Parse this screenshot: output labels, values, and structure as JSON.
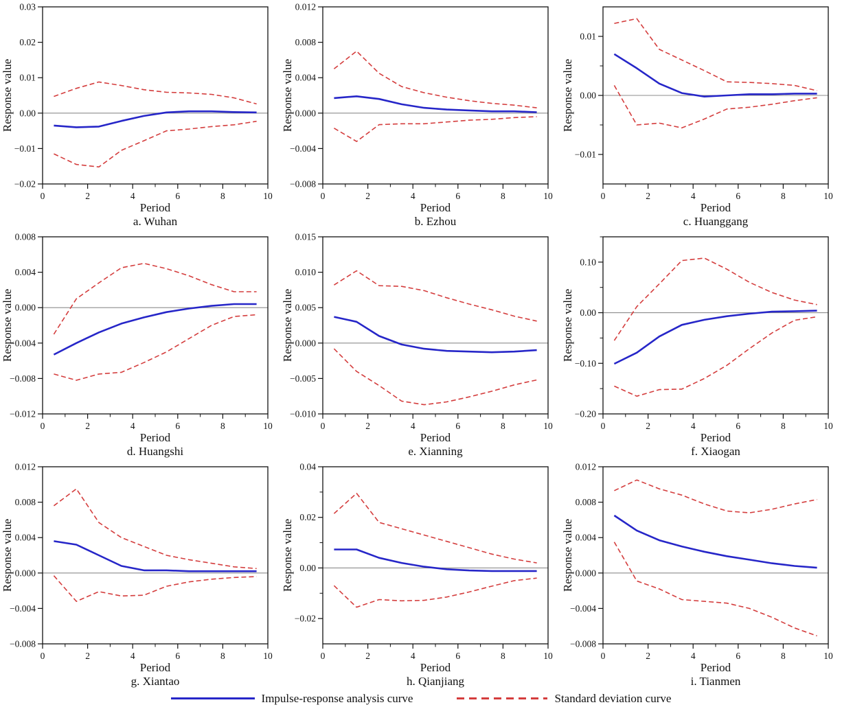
{
  "colors": {
    "impulse": "#2626c8",
    "stddev": "#d43d3d",
    "zero_line": "#8c8c8c",
    "frame": "#111111"
  },
  "legend": {
    "items": [
      {
        "label": "Impulse-response analysis curve",
        "style": "solid",
        "color": "#2626c8"
      },
      {
        "label": "Standard deviation curve",
        "style": "dashed",
        "color": "#d43d3d"
      }
    ]
  },
  "chart_data": [
    {
      "type": "line",
      "title": "a. Wuhan",
      "xlabel": "Period",
      "ylabel": "Response value",
      "xlim": [
        0,
        10
      ],
      "xticks": [
        0,
        2,
        4,
        6,
        8,
        10
      ],
      "xminor": [
        1,
        3,
        5,
        7,
        9
      ],
      "ylim": [
        -0.02,
        0.03
      ],
      "yticks": [
        0.03,
        0.02,
        0.01,
        0,
        -0.01,
        -0.02
      ],
      "ytick_labels": [
        "0.03",
        "0.02",
        "0.01",
        "0.00",
        "−0.01",
        "−0.02"
      ],
      "yminor": [],
      "x": [
        0.5,
        1.5,
        2.5,
        3.5,
        4.5,
        5.5,
        6.5,
        7.5,
        8.5,
        9.5
      ],
      "series": [
        {
          "name": "impulse-response",
          "style": "solid",
          "color": "#2626c8",
          "values": [
            -0.0035,
            -0.004,
            -0.0038,
            -0.0022,
            -0.0008,
            0.0002,
            0.0005,
            0.0005,
            0.0003,
            0.0002
          ]
        },
        {
          "name": "stddev-upper",
          "style": "dashed",
          "color": "#d43d3d",
          "values": [
            0.0047,
            0.007,
            0.0088,
            0.0078,
            0.0066,
            0.0059,
            0.0057,
            0.0053,
            0.0043,
            0.0026
          ]
        },
        {
          "name": "stddev-lower",
          "style": "dashed",
          "color": "#d43d3d",
          "values": [
            -0.0115,
            -0.0145,
            -0.0152,
            -0.0105,
            -0.0078,
            -0.005,
            -0.0045,
            -0.0038,
            -0.0033,
            -0.0023
          ]
        }
      ]
    },
    {
      "type": "line",
      "title": "b. Ezhou",
      "xlabel": "Period",
      "ylabel": "Response value",
      "xlim": [
        0,
        10
      ],
      "xticks": [
        0,
        2,
        4,
        6,
        8,
        10
      ],
      "xminor": [
        1,
        3,
        5,
        7,
        9
      ],
      "ylim": [
        -0.008,
        0.012
      ],
      "yticks": [
        0.012,
        0.008,
        0.004,
        0,
        -0.004,
        -0.008
      ],
      "ytick_labels": [
        "0.012",
        "0.008",
        "0.004",
        "0.000",
        "−0.004",
        "−0.008"
      ],
      "yminor": [],
      "x": [
        0.5,
        1.5,
        2.5,
        3.5,
        4.5,
        5.5,
        6.5,
        7.5,
        8.5,
        9.5
      ],
      "series": [
        {
          "name": "impulse-response",
          "style": "solid",
          "color": "#2626c8",
          "values": [
            0.0017,
            0.0019,
            0.0016,
            0.001,
            0.0006,
            0.0004,
            0.0003,
            0.0002,
            0.0002,
            0.0001
          ]
        },
        {
          "name": "stddev-upper",
          "style": "dashed",
          "color": "#d43d3d",
          "values": [
            0.005,
            0.007,
            0.0045,
            0.003,
            0.0023,
            0.0018,
            0.0014,
            0.0011,
            0.0009,
            0.0006
          ]
        },
        {
          "name": "stddev-lower",
          "style": "dashed",
          "color": "#d43d3d",
          "values": [
            -0.0017,
            -0.0032,
            -0.0013,
            -0.0012,
            -0.0012,
            -0.001,
            -0.0008,
            -0.0007,
            -0.0005,
            -0.0004
          ]
        }
      ]
    },
    {
      "type": "line",
      "title": "c. Huanggang",
      "xlabel": "Period",
      "ylabel": "Response value",
      "xlim": [
        0,
        10
      ],
      "xticks": [
        0,
        2,
        4,
        6,
        8,
        10
      ],
      "xminor": [
        1,
        3,
        5,
        7,
        9
      ],
      "ylim": [
        -0.015,
        0.015
      ],
      "yticks": [
        0.01,
        0,
        -0.01
      ],
      "ytick_labels": [
        "0.01",
        "0.00",
        "−0.01"
      ],
      "yminor": [
        0.005,
        -0.005
      ],
      "x": [
        0.5,
        1.5,
        2.5,
        3.5,
        4.5,
        5.5,
        6.5,
        7.5,
        8.5,
        9.5
      ],
      "series": [
        {
          "name": "impulse-response",
          "style": "solid",
          "color": "#2626c8",
          "values": [
            0.007,
            0.0046,
            0.002,
            0.0004,
            -0.0002,
            0.0,
            0.0002,
            0.0002,
            0.0003,
            0.0003
          ]
        },
        {
          "name": "stddev-upper",
          "style": "dashed",
          "color": "#d43d3d",
          "values": [
            0.0122,
            0.013,
            0.0078,
            0.006,
            0.0042,
            0.0023,
            0.0022,
            0.002,
            0.0017,
            0.0008
          ]
        },
        {
          "name": "stddev-lower",
          "style": "dashed",
          "color": "#d43d3d",
          "values": [
            0.0017,
            -0.005,
            -0.0047,
            -0.0055,
            -0.004,
            -0.0023,
            -0.002,
            -0.0015,
            -0.0009,
            -0.0004
          ]
        }
      ]
    },
    {
      "type": "line",
      "title": "d. Huangshi",
      "xlabel": "Period",
      "ylabel": "Response value",
      "xlim": [
        0,
        10
      ],
      "xticks": [
        0,
        2,
        4,
        6,
        8,
        10
      ],
      "xminor": [
        1,
        3,
        5,
        7,
        9
      ],
      "ylim": [
        -0.012,
        0.008
      ],
      "yticks": [
        0.008,
        0.004,
        0,
        -0.004,
        -0.008,
        -0.012
      ],
      "ytick_labels": [
        "0.008",
        "0.004",
        "0.000",
        "−0.004",
        "−0.008",
        "−0.012"
      ],
      "yminor": [],
      "x": [
        0.5,
        1.5,
        2.5,
        3.5,
        4.5,
        5.5,
        6.5,
        7.5,
        8.5,
        9.5
      ],
      "series": [
        {
          "name": "impulse-response",
          "style": "solid",
          "color": "#2626c8",
          "values": [
            -0.0053,
            -0.004,
            -0.0028,
            -0.0018,
            -0.0011,
            -0.0005,
            -0.0001,
            0.0002,
            0.0004,
            0.0004
          ]
        },
        {
          "name": "stddev-upper",
          "style": "dashed",
          "color": "#d43d3d",
          "values": [
            -0.003,
            0.001,
            0.0028,
            0.0045,
            0.005,
            0.0044,
            0.0036,
            0.0026,
            0.0018,
            0.0018
          ]
        },
        {
          "name": "stddev-lower",
          "style": "dashed",
          "color": "#d43d3d",
          "values": [
            -0.0075,
            -0.0082,
            -0.0075,
            -0.0073,
            -0.0062,
            -0.005,
            -0.0035,
            -0.002,
            -0.001,
            -0.0008
          ]
        }
      ]
    },
    {
      "type": "line",
      "title": "e. Xianning",
      "xlabel": "Period",
      "ylabel": "Response value",
      "xlim": [
        0,
        10
      ],
      "xticks": [
        0,
        2,
        4,
        6,
        8,
        10
      ],
      "xminor": [
        1,
        3,
        5,
        7,
        9
      ],
      "ylim": [
        -0.01,
        0.015
      ],
      "yticks": [
        0.015,
        0.01,
        0.005,
        0,
        -0.005,
        -0.01
      ],
      "ytick_labels": [
        "0.015",
        "0.010",
        "0.005",
        "0.000",
        "−0.005",
        "−0.010"
      ],
      "yminor": [],
      "x": [
        0.5,
        1.5,
        2.5,
        3.5,
        4.5,
        5.5,
        6.5,
        7.5,
        8.5,
        9.5
      ],
      "series": [
        {
          "name": "impulse-response",
          "style": "solid",
          "color": "#2626c8",
          "values": [
            0.0037,
            0.003,
            0.001,
            -0.0002,
            -0.0008,
            -0.0011,
            -0.0012,
            -0.0013,
            -0.0012,
            -0.001
          ]
        },
        {
          "name": "stddev-upper",
          "style": "dashed",
          "color": "#d43d3d",
          "values": [
            0.0082,
            0.0102,
            0.0081,
            0.008,
            0.0074,
            0.0064,
            0.0055,
            0.0047,
            0.0038,
            0.0031
          ]
        },
        {
          "name": "stddev-lower",
          "style": "dashed",
          "color": "#d43d3d",
          "values": [
            -0.0008,
            -0.004,
            -0.006,
            -0.0082,
            -0.0087,
            -0.0083,
            -0.0076,
            -0.0068,
            -0.0059,
            -0.0052
          ]
        }
      ]
    },
    {
      "type": "line",
      "title": "f. Xiaogan",
      "xlabel": "Period",
      "ylabel": "Response value",
      "xlim": [
        0,
        10
      ],
      "xticks": [
        0,
        2,
        4,
        6,
        8,
        10
      ],
      "xminor": [
        1,
        3,
        5,
        7,
        9
      ],
      "ylim": [
        -0.2,
        0.15
      ],
      "yticks": [
        0.1,
        0,
        -0.1,
        -0.2
      ],
      "ytick_labels": [
        "0.10",
        "0.00",
        "−0.10",
        "−0.20"
      ],
      "yminor": [
        0.15,
        0.05,
        -0.05,
        -0.15
      ],
      "x": [
        0.5,
        1.5,
        2.5,
        3.5,
        4.5,
        5.5,
        6.5,
        7.5,
        8.5,
        9.5
      ],
      "series": [
        {
          "name": "impulse-response",
          "style": "solid",
          "color": "#2626c8",
          "values": [
            -0.101,
            -0.079,
            -0.047,
            -0.024,
            -0.014,
            -0.007,
            -0.002,
            0.002,
            0.003,
            0.004
          ]
        },
        {
          "name": "stddev-upper",
          "style": "dashed",
          "color": "#d43d3d",
          "values": [
            -0.055,
            0.012,
            0.057,
            0.103,
            0.108,
            0.086,
            0.06,
            0.04,
            0.025,
            0.016
          ]
        },
        {
          "name": "stddev-lower",
          "style": "dashed",
          "color": "#d43d3d",
          "values": [
            -0.145,
            -0.165,
            -0.152,
            -0.151,
            -0.13,
            -0.104,
            -0.071,
            -0.04,
            -0.015,
            -0.008
          ]
        }
      ]
    },
    {
      "type": "line",
      "title": "g. Xiantao",
      "xlabel": "Period",
      "ylabel": "Response value",
      "xlim": [
        0,
        10
      ],
      "xticks": [
        0,
        2,
        4,
        6,
        8,
        10
      ],
      "xminor": [
        1,
        3,
        5,
        7,
        9
      ],
      "ylim": [
        -0.008,
        0.012
      ],
      "yticks": [
        0.012,
        0.008,
        0.004,
        0,
        -0.004,
        -0.008
      ],
      "ytick_labels": [
        "0.012",
        "0.008",
        "0.004",
        "0.000",
        "−0.004",
        "−0.008"
      ],
      "yminor": [],
      "x": [
        0.5,
        1.5,
        2.5,
        3.5,
        4.5,
        5.5,
        6.5,
        7.5,
        8.5,
        9.5
      ],
      "series": [
        {
          "name": "impulse-response",
          "style": "solid",
          "color": "#2626c8",
          "values": [
            0.0036,
            0.0032,
            0.002,
            0.0008,
            0.0003,
            0.0003,
            0.0002,
            0.0002,
            0.0002,
            0.0002
          ]
        },
        {
          "name": "stddev-upper",
          "style": "dashed",
          "color": "#d43d3d",
          "values": [
            0.0076,
            0.0095,
            0.0057,
            0.004,
            0.003,
            0.002,
            0.0015,
            0.0011,
            0.0007,
            0.0005
          ]
        },
        {
          "name": "stddev-lower",
          "style": "dashed",
          "color": "#d43d3d",
          "values": [
            -0.0003,
            -0.0032,
            -0.0021,
            -0.0026,
            -0.0025,
            -0.0015,
            -0.001,
            -0.0007,
            -0.0005,
            -0.0004
          ]
        }
      ]
    },
    {
      "type": "line",
      "title": "h. Qianjiang",
      "xlabel": "Period",
      "ylabel": "Response value",
      "xlim": [
        0,
        10
      ],
      "xticks": [
        0,
        2,
        4,
        6,
        8,
        10
      ],
      "xminor": [
        1,
        3,
        5,
        7,
        9
      ],
      "ylim": [
        -0.03,
        0.04
      ],
      "yticks": [
        0.04,
        0.02,
        0,
        -0.02
      ],
      "ytick_labels": [
        "0.04",
        "0.02",
        "0.00",
        "−0.02"
      ],
      "yminor": [
        0.03,
        0.01,
        -0.01
      ],
      "x": [
        0.5,
        1.5,
        2.5,
        3.5,
        4.5,
        5.5,
        6.5,
        7.5,
        8.5,
        9.5
      ],
      "series": [
        {
          "name": "impulse-response",
          "style": "solid",
          "color": "#2626c8",
          "values": [
            0.0073,
            0.0073,
            0.004,
            0.002,
            0.0005,
            -0.0005,
            -0.001,
            -0.0012,
            -0.0012,
            -0.0012
          ]
        },
        {
          "name": "stddev-upper",
          "style": "dashed",
          "color": "#d43d3d",
          "values": [
            0.0215,
            0.0295,
            0.018,
            0.0155,
            0.013,
            0.0105,
            0.008,
            0.0055,
            0.0035,
            0.002
          ]
        },
        {
          "name": "stddev-lower",
          "style": "dashed",
          "color": "#d43d3d",
          "values": [
            -0.007,
            -0.0155,
            -0.0125,
            -0.013,
            -0.0128,
            -0.0115,
            -0.0095,
            -0.0072,
            -0.005,
            -0.004
          ]
        }
      ]
    },
    {
      "type": "line",
      "title": "i. Tianmen",
      "xlabel": "Period",
      "ylabel": "Response value",
      "xlim": [
        0,
        10
      ],
      "xticks": [
        0,
        2,
        4,
        6,
        8,
        10
      ],
      "xminor": [
        1,
        3,
        5,
        7,
        9
      ],
      "ylim": [
        -0.008,
        0.012
      ],
      "yticks": [
        0.012,
        0.008,
        0.004,
        0,
        -0.004,
        -0.008
      ],
      "ytick_labels": [
        "0.012",
        "0.008",
        "0.004",
        "0.000",
        "−0.004",
        "−0.008"
      ],
      "yminor": [],
      "x": [
        0.5,
        1.5,
        2.5,
        3.5,
        4.5,
        5.5,
        6.5,
        7.5,
        8.5,
        9.5
      ],
      "series": [
        {
          "name": "impulse-response",
          "style": "solid",
          "color": "#2626c8",
          "values": [
            0.0065,
            0.0048,
            0.0037,
            0.003,
            0.0024,
            0.0019,
            0.0015,
            0.0011,
            0.0008,
            0.0006
          ]
        },
        {
          "name": "stddev-upper",
          "style": "dashed",
          "color": "#d43d3d",
          "values": [
            0.0093,
            0.0105,
            0.0095,
            0.0088,
            0.0078,
            0.007,
            0.0068,
            0.0072,
            0.0078,
            0.0083
          ]
        },
        {
          "name": "stddev-lower",
          "style": "dashed",
          "color": "#d43d3d",
          "values": [
            0.0035,
            -0.0009,
            -0.0018,
            -0.003,
            -0.0032,
            -0.0034,
            -0.004,
            -0.005,
            -0.0062,
            -0.0071
          ]
        }
      ]
    }
  ]
}
